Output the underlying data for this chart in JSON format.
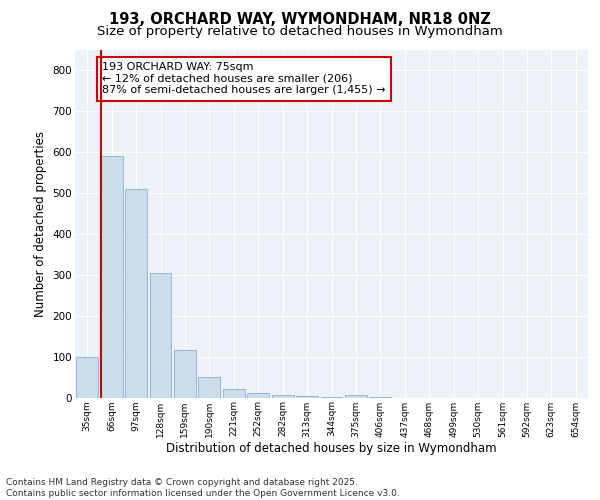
{
  "title1": "193, ORCHARD WAY, WYMONDHAM, NR18 0NZ",
  "title2": "Size of property relative to detached houses in Wymondham",
  "xlabel": "Distribution of detached houses by size in Wymondham",
  "ylabel": "Number of detached properties",
  "bar_color": "#ccdcec",
  "bar_edge_color": "#8ab0cc",
  "categories": [
    "35sqm",
    "66sqm",
    "97sqm",
    "128sqm",
    "159sqm",
    "190sqm",
    "221sqm",
    "252sqm",
    "282sqm",
    "313sqm",
    "344sqm",
    "375sqm",
    "406sqm",
    "437sqm",
    "468sqm",
    "499sqm",
    "530sqm",
    "561sqm",
    "592sqm",
    "623sqm",
    "654sqm"
  ],
  "values": [
    100,
    590,
    510,
    305,
    115,
    50,
    20,
    10,
    5,
    3,
    2,
    5,
    1,
    0,
    0,
    0,
    0,
    0,
    0,
    0,
    0
  ],
  "vline_color": "#cc0000",
  "annotation_text": "193 ORCHARD WAY: 75sqm\n← 12% of detached houses are smaller (206)\n87% of semi-detached houses are larger (1,455) →",
  "ylim": [
    0,
    850
  ],
  "yticks": [
    0,
    100,
    200,
    300,
    400,
    500,
    600,
    700,
    800
  ],
  "background_color": "#edf2f8",
  "footer_text": "Contains HM Land Registry data © Crown copyright and database right 2025.\nContains public sector information licensed under the Open Government Licence v3.0.",
  "title1_fontsize": 10.5,
  "title2_fontsize": 9.5,
  "xlabel_fontsize": 8.5,
  "ylabel_fontsize": 8.5,
  "annotation_fontsize": 8,
  "footer_fontsize": 6.5
}
